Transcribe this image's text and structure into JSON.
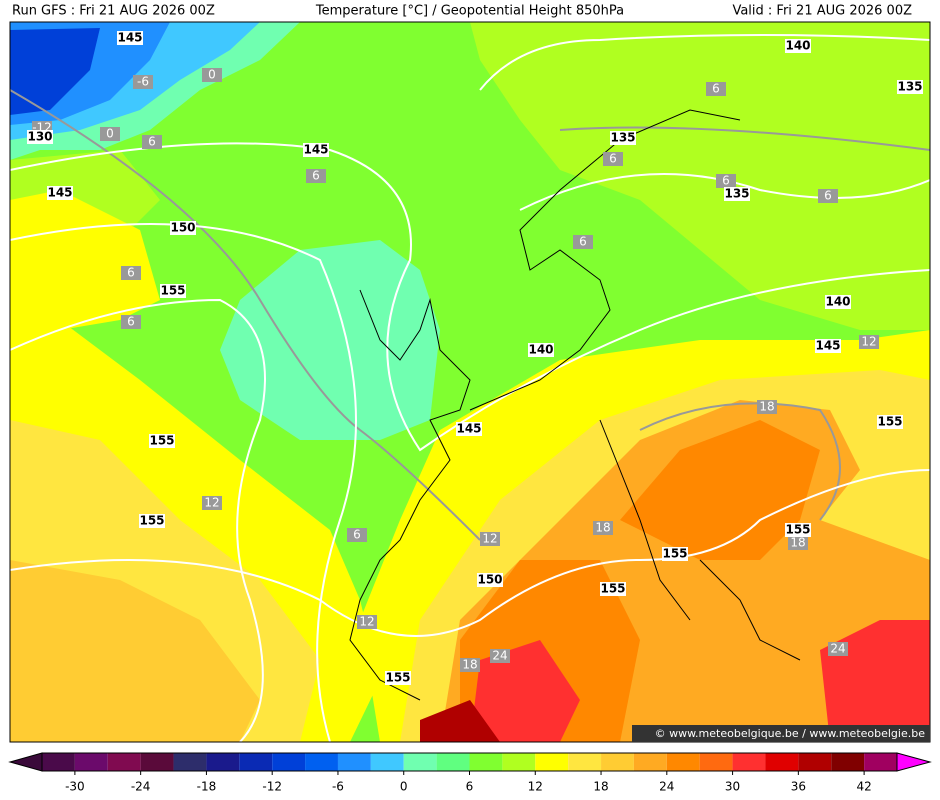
{
  "header": {
    "left": "Run GFS : Fri 21 AUG 2026 00Z",
    "center": "Temperature [°C] / Geopotential Height 850hPa",
    "right": "Valid : Fri 21 AUG 2026 00Z"
  },
  "height_labels": [
    130,
    145,
    140,
    135,
    135,
    145,
    135,
    145,
    150,
    155,
    140,
    140,
    145,
    145,
    155,
    155,
    155,
    155,
    155,
    150,
    155,
    155
  ],
  "temperature_labels": [
    -6,
    0,
    -12,
    0,
    6,
    6,
    6,
    6,
    6,
    6,
    6,
    6,
    6,
    12,
    18,
    12,
    6,
    12,
    18,
    18,
    12,
    18,
    24,
    24
  ],
  "watermark": "© www.meteobelgique.be / www.meteobelgie.be",
  "colorbar": {
    "lim": [
      -33,
      45
    ],
    "ticks": [
      -30,
      -24,
      -18,
      -12,
      -6,
      0,
      6,
      12,
      18,
      24,
      30,
      36,
      42
    ],
    "under_color": "#3a0a3a",
    "over_color": "#ff00ff",
    "colors": [
      "#4a0a4a",
      "#6b0a6b",
      "#800a50",
      "#5a0a3a",
      "#2d2d6b",
      "#1a1a8c",
      "#0a2ab4",
      "#0040d8",
      "#0060f0",
      "#2090ff",
      "#40c8ff",
      "#70ffb0",
      "#60ff80",
      "#80ff30",
      "#b0ff20",
      "#ffff00",
      "#ffe640",
      "#ffcc33",
      "#ffaa22",
      "#ff8800",
      "#ff6a10",
      "#ff3030",
      "#e00000",
      "#b00000",
      "#800000",
      "#a00060"
    ]
  }
}
